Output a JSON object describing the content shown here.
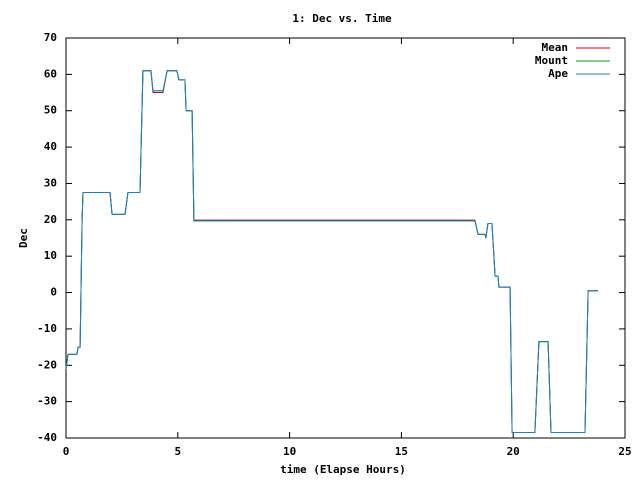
{
  "chart_data": {
    "type": "line",
    "title": "1: Dec vs. Time",
    "x_label": "time (Elapse Hours)",
    "y_label": "Dec",
    "xlim": [
      0,
      25
    ],
    "ylim": [
      -40,
      70
    ],
    "xticks": [
      0,
      5,
      10,
      15,
      20,
      25
    ],
    "yticks": [
      -40,
      -30,
      -20,
      -10,
      0,
      10,
      20,
      30,
      40,
      50,
      60,
      70
    ],
    "legend": "top-right",
    "x": [
      0,
      0.09,
      0.49,
      0.54,
      0.63,
      0.72,
      0.76,
      1.97,
      2.06,
      2.64,
      2.77,
      3.31,
      3.44,
      3.8,
      3.89,
      4.34,
      4.52,
      4.96,
      5.05,
      5.32,
      5.37,
      5.64,
      5.72,
      18.29,
      18.43,
      18.74,
      18.78,
      18.87,
      19.05,
      19.19,
      19.32,
      19.36,
      19.86,
      19.95,
      20.97,
      21.15,
      21.56,
      21.69,
      23.21,
      23.35,
      23.79
    ],
    "series": [
      {
        "name": "Mean",
        "color": "#c0002a",
        "values": [
          -21,
          -17,
          -17,
          -15,
          -15,
          20,
          27.5,
          27.5,
          21.5,
          21.5,
          27.5,
          27.5,
          61,
          61,
          55,
          55,
          61,
          61,
          58.5,
          58.5,
          50,
          50,
          19.9,
          19.9,
          16,
          16,
          15,
          19,
          19,
          4.5,
          4.5,
          1.5,
          1.5,
          -38.5,
          -38.5,
          -13.5,
          -13.5,
          -38.5,
          -38.5,
          0.5,
          0.5
        ]
      },
      {
        "name": "Mount",
        "color": "#00a000",
        "values": [
          -21,
          -17,
          -17,
          -15,
          -15,
          20,
          27.5,
          27.5,
          21.5,
          21.5,
          27.5,
          27.5,
          61,
          61,
          55.5,
          55.5,
          61,
          61,
          58.5,
          58.5,
          50,
          50,
          19.7,
          19.7,
          16,
          16,
          15,
          19,
          19,
          4.5,
          4.5,
          1.5,
          1.5,
          -38.5,
          -38.5,
          -13.5,
          -13.5,
          -38.5,
          -38.5,
          0.5,
          0.5
        ]
      },
      {
        "name": "Ape",
        "color": "#1e7fc8",
        "values": [
          -21,
          -17,
          -17,
          -15,
          -15,
          20,
          27.5,
          27.5,
          21.5,
          21.5,
          27.5,
          27.5,
          61,
          61,
          55.5,
          55.5,
          61,
          61,
          58.5,
          58.5,
          50,
          50,
          19.7,
          19.7,
          16,
          16,
          15,
          19,
          19,
          4.5,
          4.5,
          1.5,
          1.5,
          -38.5,
          -38.5,
          -13.5,
          -13.5,
          -38.5,
          -38.5,
          0.5,
          0.5
        ]
      }
    ]
  }
}
